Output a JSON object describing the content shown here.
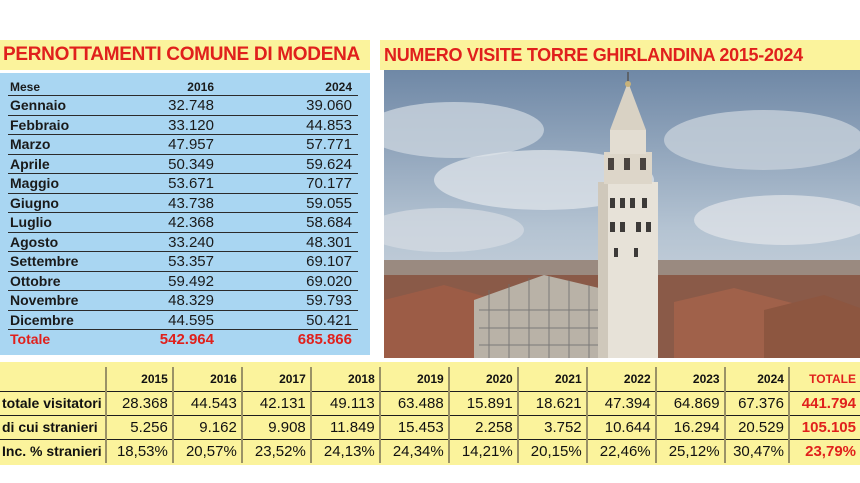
{
  "left": {
    "title": "PERNOTTAMENTI COMUNE DI MODENA",
    "header": {
      "month": "Mese",
      "y1": "2016",
      "y2": "2024"
    },
    "rows": [
      {
        "month": "Gennaio",
        "y1": "32.748",
        "y2": "39.060"
      },
      {
        "month": "Febbraio",
        "y1": "33.120",
        "y2": "44.853"
      },
      {
        "month": "Marzo",
        "y1": "47.957",
        "y2": "57.771"
      },
      {
        "month": "Aprile",
        "y1": "50.349",
        "y2": "59.624"
      },
      {
        "month": "Maggio",
        "y1": "53.671",
        "y2": "70.177"
      },
      {
        "month": "Giugno",
        "y1": "43.738",
        "y2": "59.055"
      },
      {
        "month": "Luglio",
        "y1": "42.368",
        "y2": "58.684"
      },
      {
        "month": "Agosto",
        "y1": "33.240",
        "y2": "48.301"
      },
      {
        "month": "Settembre",
        "y1": "53.357",
        "y2": "69.107"
      },
      {
        "month": "Ottobre",
        "y1": "59.492",
        "y2": "69.020"
      },
      {
        "month": "Novembre",
        "y1": "48.329",
        "y2": "59.793"
      },
      {
        "month": "Dicembre",
        "y1": "44.595",
        "y2": "50.421"
      }
    ],
    "total": {
      "month": "Totale",
      "y1": "542.964",
      "y2": "685.866"
    }
  },
  "right": {
    "title": "NUMERO VISITE TORRE GHIRLANDINA 2015-2024"
  },
  "bottom": {
    "years": [
      "2015",
      "2016",
      "2017",
      "2018",
      "2019",
      "2020",
      "2021",
      "2022",
      "2023",
      "2024"
    ],
    "total_label": "TOTALE",
    "rows": [
      {
        "label": "totale visitatori",
        "values": [
          "28.368",
          "44.543",
          "42.131",
          "49.113",
          "63.488",
          "15.891",
          "18.621",
          "47.394",
          "64.869",
          "67.376"
        ],
        "total": "441.794"
      },
      {
        "label": "di cui stranieri",
        "values": [
          "5.256",
          "9.162",
          "9.908",
          "11.849",
          "15.453",
          "2.258",
          "3.752",
          "10.644",
          "16.294",
          "20.529"
        ],
        "total": "105.105"
      },
      {
        "label": "Inc. % stranieri",
        "values": [
          "18,53%",
          "20,57%",
          "23,52%",
          "24,13%",
          "24,34%",
          "14,21%",
          "20,15%",
          "22,46%",
          "25,12%",
          "30,47%"
        ],
        "total": "23,79%"
      }
    ]
  },
  "colors": {
    "title_red": "#e0201c",
    "title_bg": "#fbf39c",
    "left_table_bg": "#a9d6f2",
    "bottom_bg": "#fbf39c"
  }
}
